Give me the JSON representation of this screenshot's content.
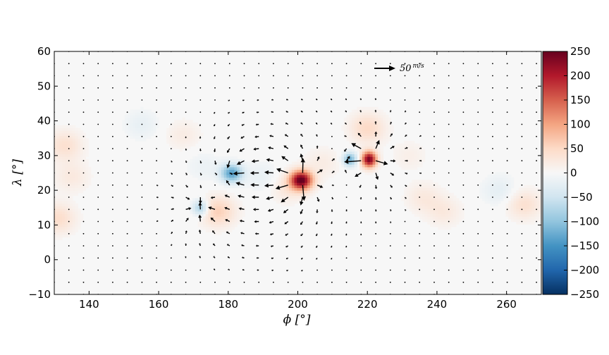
{
  "chart_data": {
    "type": "heatmap",
    "subtype": "vector-field over colored scalar map",
    "xlabel": "ϕ [°]",
    "ylabel": "λ [°]",
    "xlim": [
      130,
      270
    ],
    "ylim": [
      -10,
      60
    ],
    "xticks": [
      140,
      160,
      180,
      200,
      220,
      240,
      260
    ],
    "yticks": [
      -10,
      0,
      10,
      20,
      30,
      40,
      50,
      60
    ],
    "colorbar": {
      "range": [
        -250,
        250
      ],
      "ticks": [
        250,
        200,
        150,
        100,
        50,
        0,
        -50,
        -100,
        -150,
        -200,
        -250
      ],
      "colormap": [
        "#053061",
        "#2166ac",
        "#4393c3",
        "#92c5de",
        "#d1e5f0",
        "#f7f7f7",
        "#fddbc7",
        "#f4a582",
        "#d6604d",
        "#b2182b",
        "#67001f"
      ]
    },
    "quiver_key": {
      "label": "50",
      "unit": "m/s",
      "speed": 50
    },
    "quiver_grid": {
      "x_start": 130,
      "x_step": 4.2,
      "y_start": -10,
      "y_step": 3.5
    },
    "sources": [
      {
        "x": 201,
        "y": 23,
        "value": 250,
        "sx": 2.2,
        "sy": 1.9
      },
      {
        "x": 220.5,
        "y": 29,
        "value": 240,
        "sx": 1.5,
        "sy": 1.6
      }
    ],
    "sinks": [
      {
        "x": 181,
        "y": 25,
        "value": -140,
        "sx": 2.2,
        "sy": 1.8
      },
      {
        "x": 215,
        "y": 29,
        "value": -120,
        "sx": 1.4,
        "sy": 1.4
      },
      {
        "x": 172,
        "y": 15,
        "value": -90,
        "sx": 1.6,
        "sy": 1.6
      }
    ],
    "weak_features": [
      {
        "x": 177,
        "y": 14,
        "value": 60
      },
      {
        "x": 197,
        "y": 21,
        "value": 30
      },
      {
        "x": 190,
        "y": 24,
        "value": -20
      },
      {
        "x": 220,
        "y": 38,
        "value": 50
      },
      {
        "x": 133,
        "y": 33,
        "value": 40
      },
      {
        "x": 135,
        "y": 24,
        "value": 25
      },
      {
        "x": 131,
        "y": 12,
        "value": 45
      },
      {
        "x": 155,
        "y": 39,
        "value": -20
      },
      {
        "x": 167,
        "y": 36,
        "value": 20
      },
      {
        "x": 207,
        "y": 28,
        "value": 20
      },
      {
        "x": 236,
        "y": 18,
        "value": 25
      },
      {
        "x": 242,
        "y": 14,
        "value": 25
      },
      {
        "x": 265,
        "y": 16,
        "value": 40
      },
      {
        "x": 258,
        "y": 20,
        "value": -25
      },
      {
        "x": 232,
        "y": 30,
        "value": 15
      },
      {
        "x": 173,
        "y": 27,
        "value": -15
      }
    ]
  }
}
